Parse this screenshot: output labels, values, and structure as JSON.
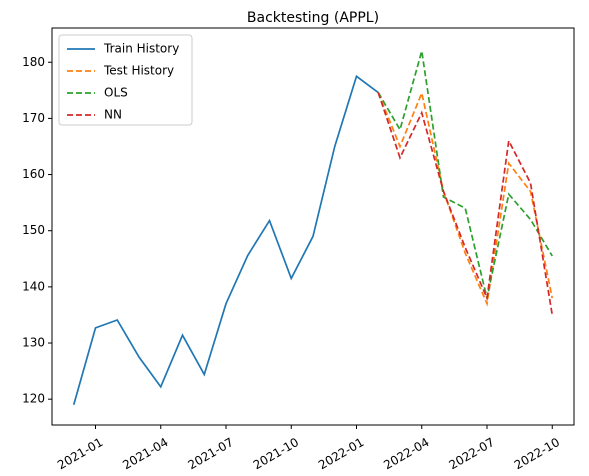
{
  "chart_data": {
    "type": "line",
    "title": "Backtesting (APPL)",
    "series": [
      {
        "name": "Train History",
        "color": "#1f77b4",
        "dash": false,
        "x": [
          "2020-12",
          "2021-01",
          "2021-02",
          "2021-03",
          "2021-04",
          "2021-05",
          "2021-06",
          "2021-07",
          "2021-08",
          "2021-09",
          "2021-10",
          "2021-11",
          "2021-12",
          "2022-01",
          "2022-02"
        ],
        "values": [
          119,
          132.7,
          134.1,
          127.5,
          122.2,
          131.4,
          124.4,
          137,
          145.6,
          151.8,
          141.5,
          149,
          165,
          177.5,
          174.6
        ]
      },
      {
        "name": "Test History",
        "color": "#ff7f0e",
        "dash": true,
        "x": [
          "2022-02",
          "2022-03",
          "2022-04",
          "2022-05",
          "2022-06",
          "2022-07",
          "2022-08",
          "2022-09",
          "2022-10"
        ],
        "values": [
          174.6,
          165,
          174.5,
          157,
          146,
          137,
          162,
          157,
          138
        ]
      },
      {
        "name": "OLS",
        "color": "#2ca02c",
        "dash": true,
        "x": [
          "2022-02",
          "2022-03",
          "2022-04",
          "2022-05",
          "2022-06",
          "2022-07",
          "2022-08",
          "2022-09",
          "2022-10"
        ],
        "values": [
          174.6,
          168,
          182,
          156,
          154,
          138,
          156.5,
          152,
          145.5
        ]
      },
      {
        "name": "NN",
        "color": "#d62728",
        "dash": true,
        "x": [
          "2022-02",
          "2022-03",
          "2022-04",
          "2022-05",
          "2022-06",
          "2022-07",
          "2022-08",
          "2022-09",
          "2022-10"
        ],
        "values": [
          174.6,
          163,
          171,
          157,
          147,
          138,
          166,
          158.5,
          135
        ]
      }
    ],
    "xlim": [
      "2020-11",
      "2022-11"
    ],
    "xticks": [
      "2021-01",
      "2021-04",
      "2021-07",
      "2021-10",
      "2022-01",
      "2022-04",
      "2022-07",
      "2022-10"
    ],
    "ylim": [
      115.4,
      186.1
    ],
    "yticks": [
      120,
      130,
      140,
      150,
      160,
      170,
      180
    ],
    "legend": "upper left"
  }
}
